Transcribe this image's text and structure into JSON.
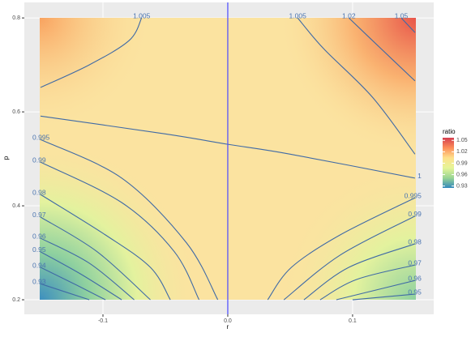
{
  "chart_data": {
    "type": "contour",
    "xlabel": "r",
    "ylabel": "p",
    "xlim": [
      -0.163,
      0.165
    ],
    "ylim": [
      0.169,
      0.833
    ],
    "xticks": [
      -0.1,
      {
        "value": 0,
        "label": "0.0"
      },
      0.1
    ],
    "yticks": [
      0.2,
      0.4,
      0.6,
      0.8
    ],
    "vline": 0,
    "vline_color": "#4a4aff",
    "line_color": "#3f6aa6",
    "legend": {
      "title": "ratio",
      "lim": [
        0.925,
        1.057
      ],
      "ticks": [
        1.05,
        1.02,
        0.99,
        0.96,
        0.93
      ],
      "colors": [
        "#3288bd",
        "#99d594",
        "#e6f598",
        "#fee08b",
        "#fc8d59",
        "#d53e4f"
      ]
    },
    "contours": [
      {
        "level": 1,
        "r": [
          -0.15,
          -0.05,
          0,
          0.05,
          0.15
        ],
        "p": [
          0.591,
          0.553,
          0.531,
          0.51,
          0.459
        ]
      },
      {
        "level": 0.995,
        "r": [
          -0.15,
          -0.085,
          -0.033,
          -0.008
        ],
        "p": [
          0.541,
          0.459,
          0.321,
          0.2
        ]
      },
      {
        "level": 0.99,
        "r": [
          -0.15,
          -0.085,
          -0.043,
          -0.023
        ],
        "p": [
          0.493,
          0.407,
          0.303,
          0.2
        ]
      },
      {
        "level": 0.98,
        "r": [
          -0.15,
          -0.098,
          -0.062,
          -0.046
        ],
        "p": [
          0.424,
          0.338,
          0.269,
          0.2
        ]
      },
      {
        "level": 0.97,
        "r": [
          -0.15,
          -0.105,
          -0.062
        ],
        "p": [
          0.376,
          0.303,
          0.2
        ]
      },
      {
        "level": 0.96,
        "r": [
          -0.15,
          -0.111,
          -0.075
        ],
        "p": [
          0.331,
          0.278,
          0.2
        ]
      },
      {
        "level": 0.95,
        "r": [
          -0.15,
          -0.118,
          -0.085
        ],
        "p": [
          0.302,
          0.255,
          0.2
        ]
      },
      {
        "level": 0.94,
        "r": [
          -0.15,
          -0.121,
          -0.098
        ],
        "p": [
          0.269,
          0.231,
          0.2
        ]
      },
      {
        "level": 0.93,
        "r": [
          -0.15,
          -0.111
        ],
        "p": [
          0.234,
          0.2
        ]
      },
      {
        "level": 0.995,
        "r": [
          0.032,
          0.051,
          0.09,
          0.15
        ],
        "p": [
          0.2,
          0.269,
          0.338,
          0.417
        ]
      },
      {
        "level": 0.99,
        "r": [
          0.045,
          0.09,
          0.15
        ],
        "p": [
          0.2,
          0.295,
          0.378
        ]
      },
      {
        "level": 0.98,
        "r": [
          0.061,
          0.097,
          0.15
        ],
        "p": [
          0.2,
          0.269,
          0.319
        ]
      },
      {
        "level": 0.97,
        "r": [
          0.074,
          0.103,
          0.15
        ],
        "p": [
          0.2,
          0.243,
          0.274
        ]
      },
      {
        "level": 0.96,
        "r": [
          0.087,
          0.15
        ],
        "p": [
          0.2,
          0.241
        ]
      },
      {
        "level": 0.95,
        "r": [
          0.1,
          0.15
        ],
        "p": [
          0.2,
          0.212
        ]
      },
      {
        "level": 1.005,
        "r": [
          -0.069,
          -0.079,
          -0.111,
          -0.15
        ],
        "p": [
          0.8,
          0.752,
          0.7,
          0.652
        ]
      },
      {
        "level": 1.005,
        "r": [
          0.056,
          0.077,
          0.116,
          0.15
        ],
        "p": [
          0.8,
          0.734,
          0.631,
          0.51
        ]
      },
      {
        "level": 1.02,
        "r": [
          0.097,
          0.123,
          0.15
        ],
        "p": [
          0.8,
          0.734,
          0.666
        ]
      },
      {
        "level": 1.05,
        "r": [
          0.139,
          0.15
        ],
        "p": [
          0.8,
          0.769
        ]
      }
    ]
  }
}
